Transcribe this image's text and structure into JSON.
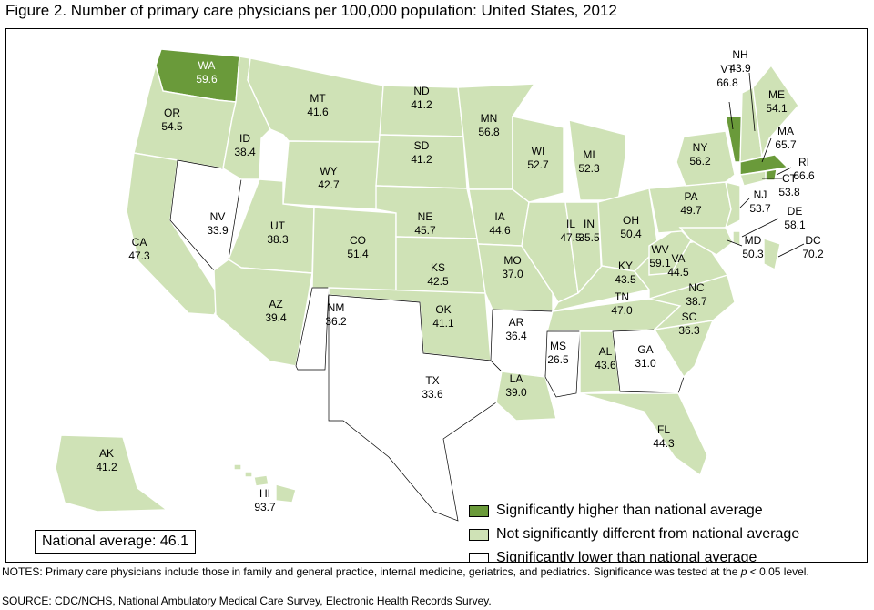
{
  "title": "Figure 2. Number of primary care physicians per 100,000 population: United States, 2012",
  "colors": {
    "significantly_higher": "#6a9a3a",
    "not_significantly_different": "#cfe2b6",
    "significantly_lower": "#ffffff"
  },
  "states": [
    {
      "abbr": "WA",
      "value": "59.6",
      "category": "higher"
    },
    {
      "abbr": "OR",
      "value": "54.5",
      "category": "not_different"
    },
    {
      "abbr": "CA",
      "value": "47.3",
      "category": "not_different"
    },
    {
      "abbr": "NV",
      "value": "33.9",
      "category": "lower"
    },
    {
      "abbr": "ID",
      "value": "38.4",
      "category": "not_different"
    },
    {
      "abbr": "MT",
      "value": "41.6",
      "category": "not_different"
    },
    {
      "abbr": "WY",
      "value": "42.7",
      "category": "not_different"
    },
    {
      "abbr": "UT",
      "value": "38.3",
      "category": "not_different"
    },
    {
      "abbr": "AZ",
      "value": "39.4",
      "category": "not_different"
    },
    {
      "abbr": "CO",
      "value": "51.4",
      "category": "not_different"
    },
    {
      "abbr": "NM",
      "value": "36.2",
      "category": "lower"
    },
    {
      "abbr": "ND",
      "value": "41.2",
      "category": "not_different"
    },
    {
      "abbr": "SD",
      "value": "41.2",
      "category": "not_different"
    },
    {
      "abbr": "NE",
      "value": "45.7",
      "category": "not_different"
    },
    {
      "abbr": "KS",
      "value": "42.5",
      "category": "not_different"
    },
    {
      "abbr": "OK",
      "value": "41.1",
      "category": "not_different"
    },
    {
      "abbr": "TX",
      "value": "33.6",
      "category": "lower"
    },
    {
      "abbr": "MN",
      "value": "56.8",
      "category": "not_different"
    },
    {
      "abbr": "IA",
      "value": "44.6",
      "category": "not_different"
    },
    {
      "abbr": "MO",
      "value": "37.0",
      "category": "not_different"
    },
    {
      "abbr": "AR",
      "value": "36.4",
      "category": "lower"
    },
    {
      "abbr": "LA",
      "value": "39.0",
      "category": "not_different"
    },
    {
      "abbr": "WI",
      "value": "52.7",
      "category": "not_different"
    },
    {
      "abbr": "IL",
      "value": "47.5",
      "category": "not_different"
    },
    {
      "abbr": "MI",
      "value": "52.3",
      "category": "not_different"
    },
    {
      "abbr": "IN",
      "value": "35.5",
      "category": "not_different"
    },
    {
      "abbr": "OH",
      "value": "50.4",
      "category": "not_different"
    },
    {
      "abbr": "KY",
      "value": "43.5",
      "category": "not_different"
    },
    {
      "abbr": "TN",
      "value": "47.0",
      "category": "not_different"
    },
    {
      "abbr": "MS",
      "value": "26.5",
      "category": "lower"
    },
    {
      "abbr": "AL",
      "value": "43.6",
      "category": "not_different"
    },
    {
      "abbr": "GA",
      "value": "31.0",
      "category": "lower"
    },
    {
      "abbr": "FL",
      "value": "44.3",
      "category": "not_different"
    },
    {
      "abbr": "SC",
      "value": "36.3",
      "category": "not_different"
    },
    {
      "abbr": "NC",
      "value": "38.7",
      "category": "not_different"
    },
    {
      "abbr": "VA",
      "value": "44.5",
      "category": "not_different"
    },
    {
      "abbr": "WV",
      "value": "59.1",
      "category": "not_different"
    },
    {
      "abbr": "PA",
      "value": "49.7",
      "category": "not_different"
    },
    {
      "abbr": "NY",
      "value": "56.2",
      "category": "not_different"
    },
    {
      "abbr": "VT",
      "value": "66.8",
      "category": "higher"
    },
    {
      "abbr": "NH",
      "value": "43.9",
      "category": "not_different"
    },
    {
      "abbr": "ME",
      "value": "54.1",
      "category": "not_different"
    },
    {
      "abbr": "MA",
      "value": "65.7",
      "category": "higher"
    },
    {
      "abbr": "RI",
      "value": "66.6",
      "category": "higher"
    },
    {
      "abbr": "CT",
      "value": "53.8",
      "category": "not_different"
    },
    {
      "abbr": "NJ",
      "value": "53.7",
      "category": "not_different"
    },
    {
      "abbr": "DE",
      "value": "58.1",
      "category": "not_different"
    },
    {
      "abbr": "MD",
      "value": "50.3",
      "category": "not_different"
    },
    {
      "abbr": "DC",
      "value": "70.2",
      "category": "not_different"
    },
    {
      "abbr": "AK",
      "value": "41.2",
      "category": "not_different"
    },
    {
      "abbr": "HI",
      "value": "93.7",
      "category": "not_different"
    }
  ],
  "legend": {
    "higher": "Significantly higher than national average",
    "not_different": "Not significantly different from national average",
    "lower": "Significantly lower than national average"
  },
  "national_average": "National average: 46.1",
  "notes": {
    "prefix": "NOTES: Primary care physicians include those in family and general practice, internal medicine, geriatrics, and pediatrics. Significance was tested at the ",
    "p_symbol": "p",
    "suffix": " < 0.05 level."
  },
  "source": "SOURCE: CDC/NCHS, National Ambulatory Medical Care Survey, Electronic Health Records Survey."
}
